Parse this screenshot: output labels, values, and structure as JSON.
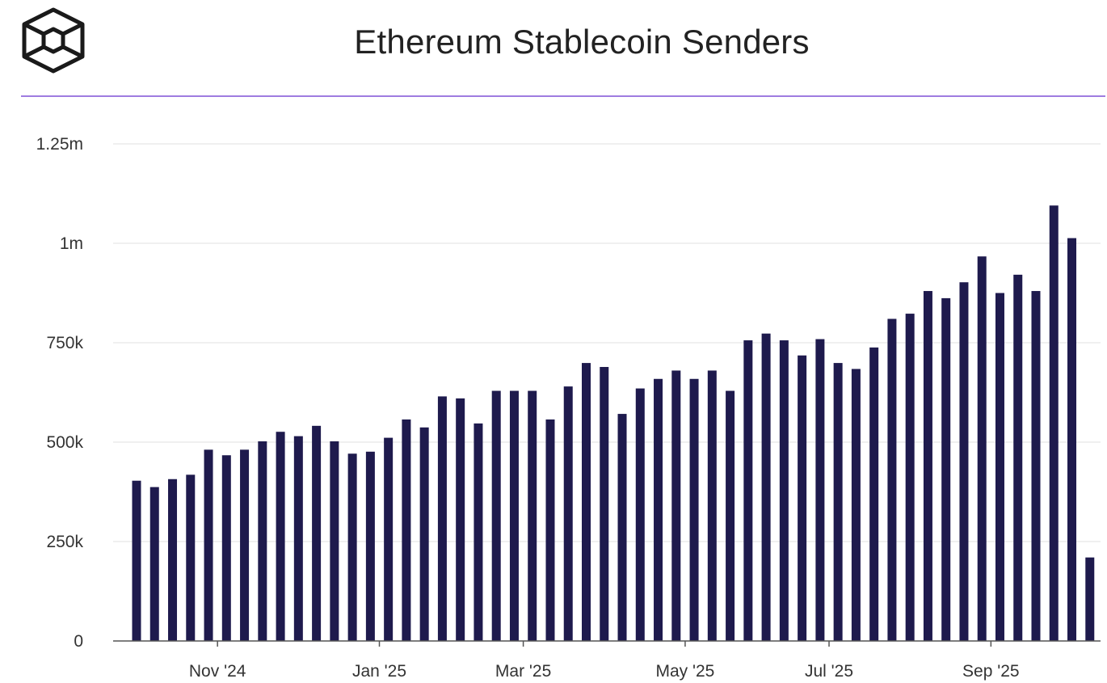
{
  "header": {
    "logo_icon": "the-block-cube-logo-icon"
  },
  "chart_data": {
    "type": "bar",
    "title": "Ethereum Stablecoin Senders",
    "xlabel": "",
    "ylabel": "",
    "ylim": [
      0,
      1250000
    ],
    "y_ticks": [
      0,
      250000,
      500000,
      750000,
      1000000,
      1250000
    ],
    "y_tick_labels": [
      "0",
      "250k",
      "500k",
      "750k",
      "1m",
      "1.25m"
    ],
    "x_tick_labels": [
      "Nov '24",
      "Jan '25",
      "Mar '25",
      "May '25",
      "Jul '25",
      "Sep '25"
    ],
    "x_tick_positions": [
      4,
      13,
      21,
      30,
      38,
      47
    ],
    "grid": true,
    "legend": "none",
    "bar_color": "#1e1a4d",
    "values": [
      403000,
      387000,
      407000,
      418000,
      481000,
      467000,
      481000,
      502000,
      526000,
      515000,
      541000,
      502000,
      471000,
      476000,
      511000,
      557000,
      537000,
      615000,
      610000,
      547000,
      629000,
      629000,
      629000,
      557000,
      640000,
      699000,
      689000,
      571000,
      635000,
      659000,
      680000,
      659000,
      680000,
      629000,
      756000,
      773000,
      756000,
      718000,
      759000,
      699000,
      684000,
      738000,
      810000,
      823000,
      880000,
      862000,
      902000,
      967000,
      875000,
      921000,
      880000,
      1095000,
      1013000,
      210000
    ]
  }
}
